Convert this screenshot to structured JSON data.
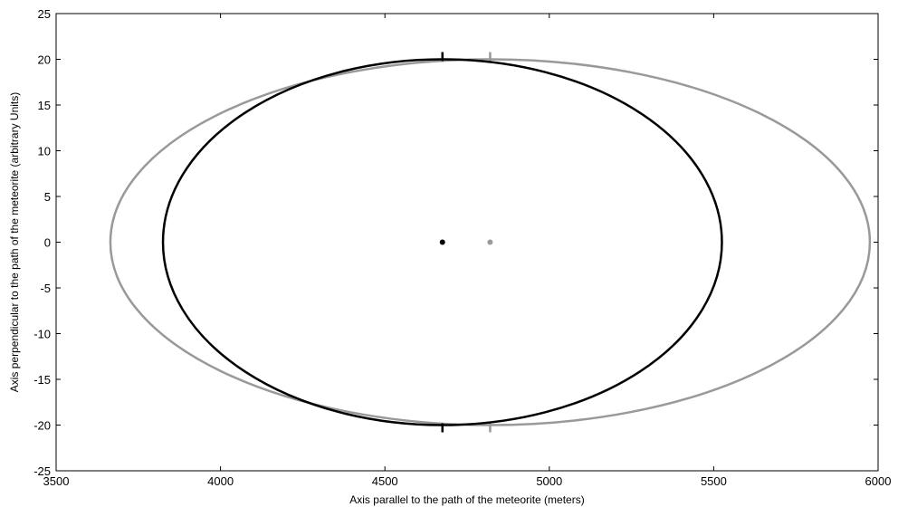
{
  "chart_data": {
    "type": "line",
    "title": "",
    "xlabel": "Axis parallel to the path of the meteorite (meters)",
    "ylabel": "Axis perpendicular to the path of the meteorite (arbitrary Units)",
    "xlim": [
      3500,
      6000
    ],
    "ylim": [
      -25,
      25
    ],
    "x_ticks": [
      3500,
      4000,
      4500,
      5000,
      5500,
      6000
    ],
    "y_ticks": [
      -25,
      -20,
      -15,
      -10,
      -5,
      0,
      5,
      10,
      15,
      20,
      25
    ],
    "x_tick_labels": [
      "3500",
      "4000",
      "4500",
      "5000",
      "5500",
      "6000"
    ],
    "y_tick_labels": [
      "-25",
      "-20",
      "-15",
      "-10",
      "-5",
      "0",
      "5",
      "10",
      "15",
      "20",
      "25"
    ],
    "grid": false,
    "series": [
      {
        "shape": "ellipse",
        "color": "#000000",
        "center": [
          4675,
          0
        ],
        "semi_axis_x": 850,
        "semi_axis_y": 20,
        "center_marker": true,
        "tick_marks_x": 4675
      },
      {
        "shape": "ellipse",
        "color": "#999999",
        "center": [
          4820,
          0
        ],
        "semi_axis_x": 1155,
        "semi_axis_y": 20,
        "center_marker": true,
        "tick_marks_x": 4820
      }
    ]
  }
}
